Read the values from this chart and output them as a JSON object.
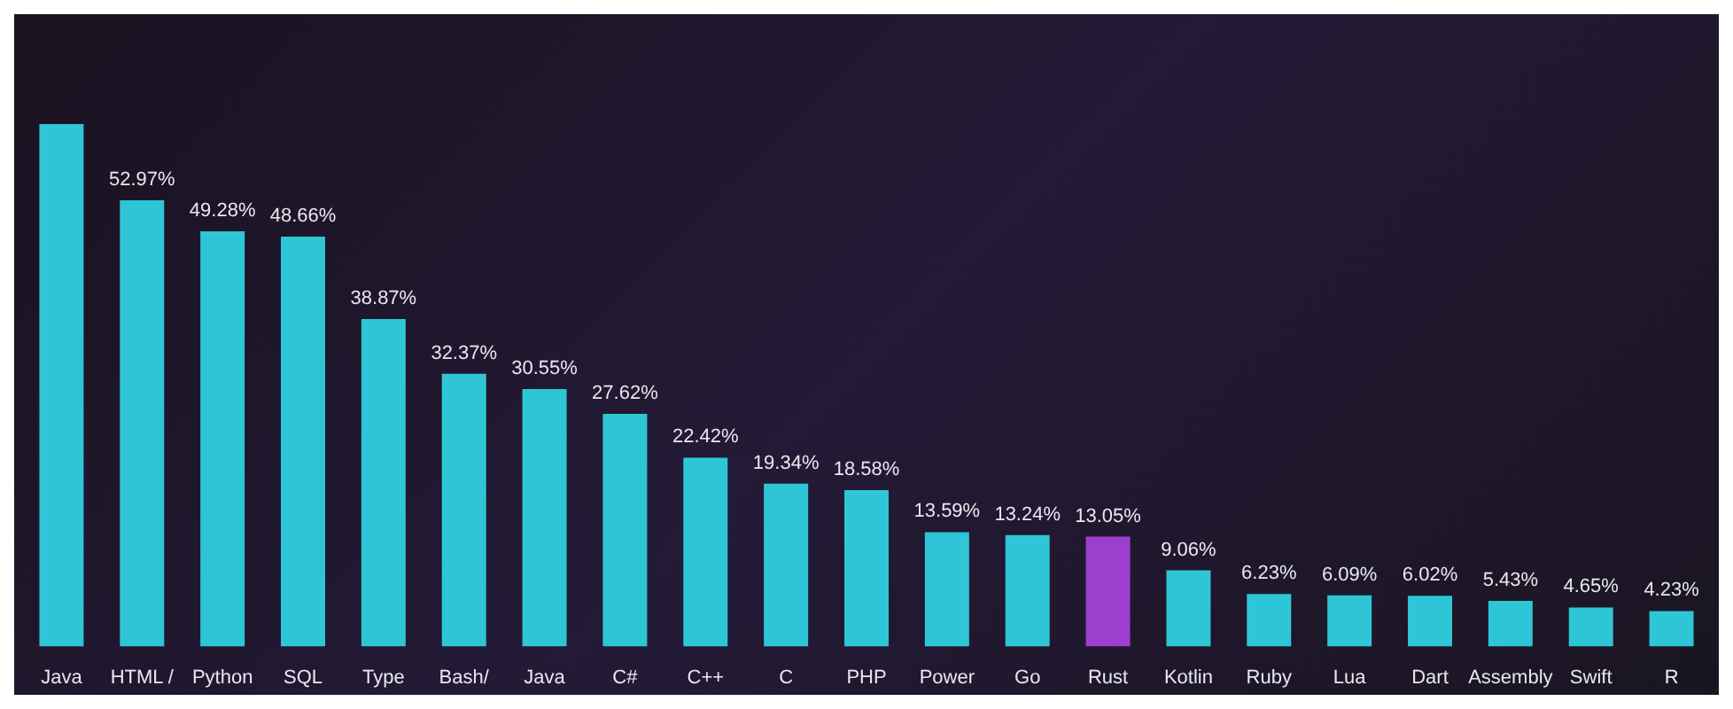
{
  "chart_data": {
    "type": "bar",
    "categories": [
      "Java",
      "HTML /",
      "Python",
      "SQL",
      "Type",
      "Bash/",
      "Java",
      "C#",
      "C++",
      "C",
      "PHP",
      "Power",
      "Go",
      "Rust",
      "Kotlin",
      "Ruby",
      "Lua",
      "Dart",
      "Assembly",
      "Swift",
      "R"
    ],
    "values": [
      62,
      52.97,
      49.28,
      48.66,
      38.87,
      32.37,
      30.55,
      27.62,
      22.42,
      19.34,
      18.58,
      13.59,
      13.24,
      13.05,
      9.06,
      6.23,
      6.09,
      6.02,
      5.43,
      4.65,
      4.23
    ],
    "value_labels": [
      null,
      "52.97%",
      "49.28%",
      "48.66%",
      "38.87%",
      "32.37%",
      "30.55%",
      "27.62%",
      "22.42%",
      "19.34%",
      "18.58%",
      "13.59%",
      "13.24%",
      "13.05%",
      "9.06%",
      "6.23%",
      "6.09%",
      "6.02%",
      "5.43%",
      "4.65%",
      "4.23%"
    ],
    "colors": [
      "#2ec6d6",
      "#2ec6d6",
      "#2ec6d6",
      "#2ec6d6",
      "#2ec6d6",
      "#2ec6d6",
      "#2ec6d6",
      "#2ec6d6",
      "#2ec6d6",
      "#2ec6d6",
      "#2ec6d6",
      "#2ec6d6",
      "#2ec6d6",
      "#9c3fcf",
      "#2ec6d6",
      "#2ec6d6",
      "#2ec6d6",
      "#2ec6d6",
      "#2ec6d6",
      "#2ec6d6",
      "#2ec6d6"
    ]
  }
}
